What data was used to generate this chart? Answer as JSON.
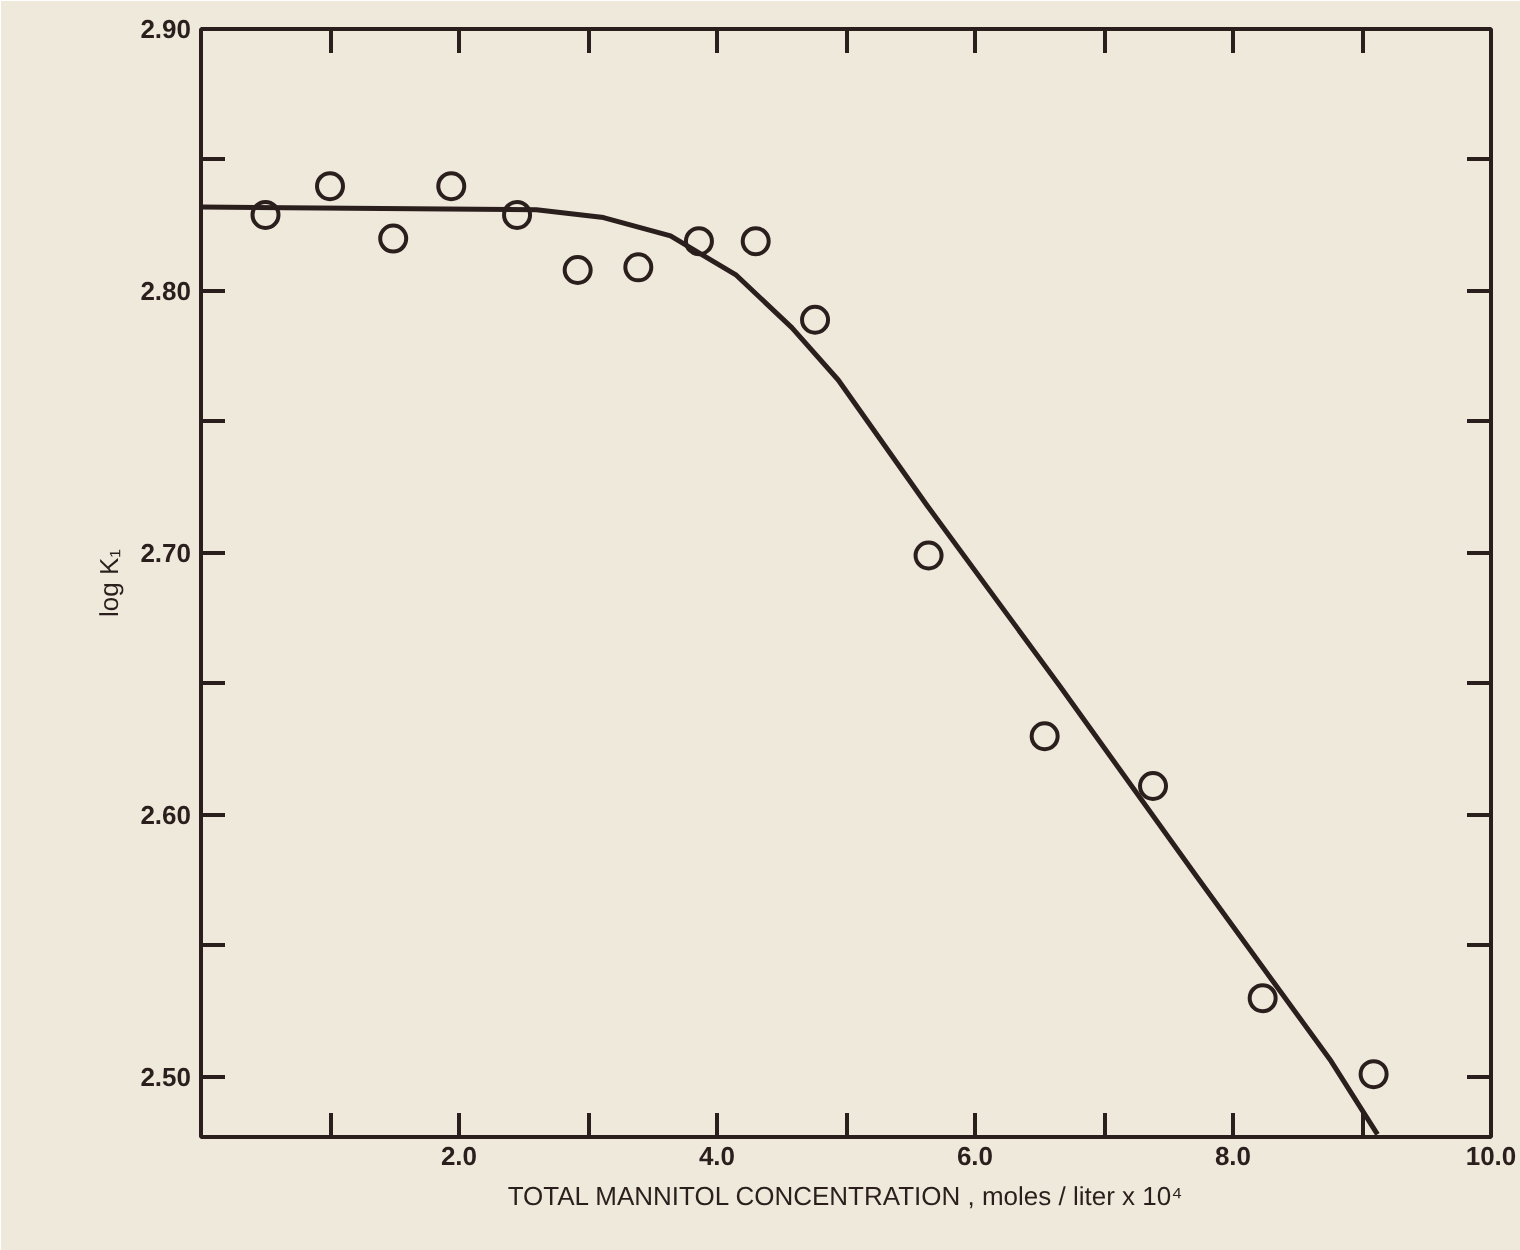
{
  "chart_data": {
    "type": "scatter",
    "xlabel": "TOTAL MANNITOL CONCENTRATION , moles / liter x 10⁴",
    "ylabel": "log K₁",
    "xlim": [
      0,
      10.0
    ],
    "ylim": [
      2.477,
      2.9
    ],
    "xticks": [
      {
        "value": 1,
        "label": null
      },
      {
        "value": 2,
        "label": "2.0"
      },
      {
        "value": 3,
        "label": null
      },
      {
        "value": 4,
        "label": "4.0"
      },
      {
        "value": 5,
        "label": null
      },
      {
        "value": 6,
        "label": "6.0"
      },
      {
        "value": 7,
        "label": null
      },
      {
        "value": 8,
        "label": "8.0"
      },
      {
        "value": 9,
        "label": null
      },
      {
        "value": 10,
        "label": "10.0"
      }
    ],
    "yticks": [
      {
        "value": 2.5,
        "label": "2.50"
      },
      {
        "value": 2.55,
        "label": null
      },
      {
        "value": 2.6,
        "label": "2.60"
      },
      {
        "value": 2.65,
        "label": null
      },
      {
        "value": 2.7,
        "label": "2.70"
      },
      {
        "value": 2.75,
        "label": null
      },
      {
        "value": 2.8,
        "label": "2.80"
      },
      {
        "value": 2.85,
        "label": null
      },
      {
        "value": 2.9,
        "label": "2.90"
      }
    ],
    "grid": false,
    "series": [
      {
        "marker": "circle",
        "color": "#2a1f1c",
        "x": [
          0.5,
          1.0,
          1.49,
          1.94,
          2.45,
          2.92,
          3.39,
          3.86,
          4.3,
          4.76,
          5.64,
          6.54,
          7.38,
          8.23,
          9.09
        ],
        "values": [
          2.829,
          2.84,
          2.82,
          2.84,
          2.829,
          2.808,
          2.809,
          2.819,
          2.819,
          2.789,
          2.699,
          2.63,
          2.611,
          2.53,
          2.501
        ]
      },
      {
        "type": "line",
        "color": "#2a1f1c",
        "line_style": "solid",
        "x": [
          0,
          2.6,
          3.12,
          3.64,
          4.15,
          4.58,
          4.94,
          5.63,
          6.66,
          7.71,
          8.76,
          9.12
        ],
        "values": [
          2.832,
          2.831,
          2.828,
          2.821,
          2.806,
          2.786,
          2.766,
          2.718,
          2.649,
          2.577,
          2.506,
          2.478
        ]
      }
    ]
  }
}
